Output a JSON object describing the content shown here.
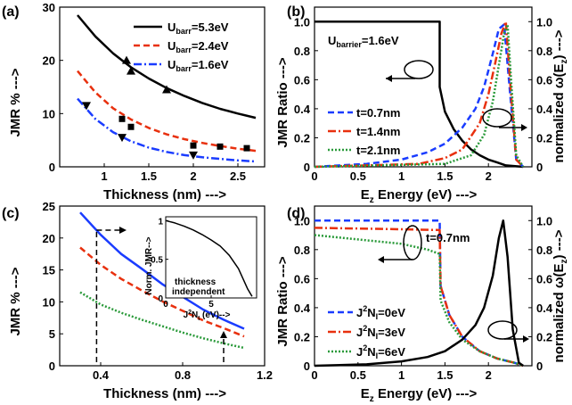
{
  "chart_data": [
    {
      "panel": "(a)",
      "type": "line",
      "xlabel": "Thickness (nm) --->",
      "ylabel": "JMR % --->",
      "xlim": [
        0.5,
        2.8
      ],
      "ylim": [
        0,
        30
      ],
      "xticks": [
        "1",
        "1.5",
        "2",
        "2.5"
      ],
      "yticks": [
        "0",
        "10",
        "20",
        "30"
      ],
      "legend_position": "top-right",
      "series": [
        {
          "name": "U_barr=5.3eV",
          "color": "#000000",
          "dash": "solid",
          "x": [
            0.7,
            0.9,
            1.1,
            1.3,
            1.5,
            1.7,
            1.9,
            2.1,
            2.3,
            2.5,
            2.7
          ],
          "y": [
            28.5,
            24.5,
            21.3,
            18.7,
            16.6,
            14.8,
            13.3,
            12.0,
            10.9,
            10.0,
            9.2
          ]
        },
        {
          "name": "U_barr=2.4eV",
          "color": "#e8300e",
          "dash": "dashed",
          "x": [
            0.7,
            0.9,
            1.1,
            1.3,
            1.5,
            1.7,
            1.9,
            2.1,
            2.3,
            2.5,
            2.7
          ],
          "y": [
            18.0,
            14.0,
            11.0,
            8.9,
            7.3,
            6.1,
            5.2,
            4.5,
            3.9,
            3.4,
            3.0
          ]
        },
        {
          "name": "U_barr=1.6eV",
          "color": "#1a3cff",
          "dash": "dashdot",
          "x": [
            0.7,
            0.9,
            1.1,
            1.3,
            1.5,
            1.7,
            1.9,
            2.1,
            2.3,
            2.5,
            2.7
          ],
          "y": [
            12.8,
            9.0,
            6.5,
            4.8,
            3.6,
            2.8,
            2.2,
            1.8,
            1.5,
            1.2,
            1.0
          ]
        }
      ],
      "markers": [
        {
          "shape": "triangle-up",
          "x": [
            1.25,
            1.3,
            1.7
          ],
          "y": [
            20,
            18,
            14.5
          ]
        },
        {
          "shape": "square",
          "x": [
            1.2,
            1.3,
            2.0,
            2.3,
            2.6
          ],
          "y": [
            9,
            7.5,
            4,
            3.8,
            3.5
          ]
        },
        {
          "shape": "triangle-down",
          "x": [
            0.8,
            1.2,
            2.0
          ],
          "y": [
            11.5,
            5.5,
            2.2
          ]
        }
      ]
    },
    {
      "panel": "(b)",
      "type": "line",
      "xlabel": "E_z Energy (eV) --->",
      "ylabel_left": "JMR Ratio --->",
      "ylabel_right": "normalized ω(E_z) --->",
      "xlim": [
        0,
        2.5
      ],
      "ylim": [
        0,
        1.1
      ],
      "xticks": [
        "0",
        "0.5",
        "1",
        "1.5",
        "2"
      ],
      "yticks": [
        "0",
        "0.2",
        "0.4",
        "0.6",
        "0.8",
        "1.0"
      ],
      "annotation": "U_barrier=1.6eV",
      "series": [
        {
          "name": "JMR",
          "color": "#000000",
          "dash": "solid",
          "x": [
            0,
            1.44,
            1.44,
            1.5,
            1.6,
            1.7,
            1.8,
            1.9,
            2.0,
            2.1,
            2.2,
            2.4
          ],
          "y": [
            1.0,
            1.0,
            0.55,
            0.38,
            0.26,
            0.18,
            0.12,
            0.08,
            0.05,
            0.03,
            0.01,
            0.0
          ]
        },
        {
          "name": "t=0.7nm",
          "color": "#1a3cff",
          "dash": "dashed",
          "x": [
            0,
            0.6,
            1.0,
            1.3,
            1.5,
            1.7,
            1.85,
            1.95,
            2.05,
            2.12,
            2.18,
            2.25,
            2.32,
            2.4
          ],
          "y": [
            0.0,
            0.02,
            0.05,
            0.1,
            0.16,
            0.27,
            0.4,
            0.55,
            0.78,
            0.95,
            0.98,
            0.5,
            0.05,
            0.0
          ]
        },
        {
          "name": "t=1.4nm",
          "color": "#e8300e",
          "dash": "dashdot",
          "x": [
            0,
            1.2,
            1.5,
            1.7,
            1.9,
            2.0,
            2.08,
            2.15,
            2.2,
            2.26,
            2.32,
            2.4
          ],
          "y": [
            0.0,
            0.02,
            0.06,
            0.12,
            0.3,
            0.5,
            0.72,
            0.92,
            1.0,
            0.5,
            0.05,
            0.0
          ]
        },
        {
          "name": "t=2.1nm",
          "color": "#2a9a3a",
          "dash": "dotted",
          "x": [
            0,
            1.5,
            1.8,
            1.95,
            2.05,
            2.12,
            2.18,
            2.22,
            2.26,
            2.32,
            2.4
          ],
          "y": [
            0.0,
            0.02,
            0.08,
            0.22,
            0.45,
            0.7,
            0.92,
            0.98,
            0.6,
            0.08,
            0.0
          ]
        }
      ]
    },
    {
      "panel": "(c)",
      "type": "line",
      "xlabel": "Thickness (nm) --->",
      "ylabel": "JMR % --->",
      "xlim": [
        0.2,
        1.2
      ],
      "ylim": [
        0,
        25
      ],
      "xticks": [
        "0.4",
        "0.8",
        "1.2"
      ],
      "yticks": [
        "0",
        "5",
        "10",
        "15",
        "20",
        "25"
      ],
      "series": [
        {
          "name": "blue",
          "color": "#1a3cff",
          "dash": "solid",
          "x": [
            0.3,
            0.4,
            0.5,
            0.6,
            0.7,
            0.8,
            0.9,
            1.0,
            1.1
          ],
          "y": [
            24.0,
            20.5,
            17.5,
            15.2,
            12.8,
            10.8,
            8.8,
            7.2,
            5.8
          ]
        },
        {
          "name": "red",
          "color": "#e8300e",
          "dash": "dashed",
          "x": [
            0.3,
            0.4,
            0.5,
            0.6,
            0.7,
            0.8,
            0.9,
            1.0,
            1.1
          ],
          "y": [
            18.5,
            15.8,
            13.6,
            11.8,
            10.1,
            8.6,
            7.1,
            5.9,
            4.6
          ]
        },
        {
          "name": "green",
          "color": "#2a9a3a",
          "dash": "dotted",
          "x": [
            0.3,
            0.4,
            0.5,
            0.6,
            0.7,
            0.8,
            0.9,
            1.0,
            1.1
          ],
          "y": [
            11.5,
            9.6,
            8.3,
            7.2,
            6.2,
            5.2,
            4.3,
            3.5,
            2.8
          ]
        }
      ],
      "inset": {
        "xlabel": "J²N_I (eV)-->",
        "ylabel": "Norm. JMR-->",
        "xlim": [
          0,
          10
        ],
        "ylim": [
          0,
          1.05
        ],
        "xticks": [
          "0",
          "5"
        ],
        "yticks": [
          "0",
          "0.5",
          "1"
        ],
        "annotation": [
          "thickness",
          "independent"
        ],
        "curve": {
          "x": [
            0,
            1,
            2,
            3,
            4,
            5,
            6,
            7,
            8,
            9,
            9.5
          ],
          "y": [
            1.0,
            0.97,
            0.93,
            0.88,
            0.82,
            0.75,
            0.67,
            0.55,
            0.38,
            0.12,
            0.02
          ]
        }
      }
    },
    {
      "panel": "(d)",
      "type": "line",
      "xlabel": "E_z Energy (eV) --->",
      "ylabel_left": "JMR Ratio --->",
      "ylabel_right": "normalized ω(E_z) --->",
      "xlim": [
        0,
        2.5
      ],
      "ylim": [
        0,
        1.1
      ],
      "xticks": [
        "0",
        "0.5",
        "1",
        "1.5",
        "2"
      ],
      "yticks": [
        "0",
        "0.2",
        "0.4",
        "0.6",
        "0.8",
        "1.0"
      ],
      "annotation": "t=0.7nm",
      "series": [
        {
          "name": "J²N_I=0eV",
          "color": "#1a3cff",
          "dash": "dashed",
          "x": [
            0,
            1.44,
            1.45,
            1.55,
            1.7,
            1.9,
            2.1,
            2.3,
            2.4
          ],
          "y": [
            1.0,
            1.0,
            0.55,
            0.35,
            0.2,
            0.1,
            0.05,
            0.02,
            0.0
          ]
        },
        {
          "name": "J²N_I=3eV",
          "color": "#e8300e",
          "dash": "dashdot",
          "x": [
            0,
            0.5,
            1.0,
            1.44,
            1.45,
            1.55,
            1.7,
            1.9,
            2.1,
            2.3,
            2.4
          ],
          "y": [
            0.95,
            0.945,
            0.94,
            0.935,
            0.55,
            0.35,
            0.2,
            0.1,
            0.05,
            0.02,
            0.0
          ]
        },
        {
          "name": "J²N_I=6eV",
          "color": "#2a9a3a",
          "dash": "dotted",
          "x": [
            0,
            0.5,
            1.0,
            1.3,
            1.44,
            1.45,
            1.55,
            1.7,
            1.9,
            2.1,
            2.3,
            2.4
          ],
          "y": [
            0.9,
            0.87,
            0.84,
            0.8,
            0.77,
            0.45,
            0.3,
            0.18,
            0.1,
            0.05,
            0.02,
            0.0
          ]
        },
        {
          "name": "ω(E_z)",
          "color": "#000000",
          "dash": "solid",
          "x": [
            0,
            0.6,
            1.0,
            1.3,
            1.5,
            1.7,
            1.85,
            1.95,
            2.05,
            2.12,
            2.17,
            2.22,
            2.28,
            2.35,
            2.4
          ],
          "y": [
            0.0,
            0.01,
            0.03,
            0.06,
            0.1,
            0.18,
            0.28,
            0.4,
            0.62,
            0.88,
            1.0,
            0.75,
            0.25,
            0.02,
            0.0
          ]
        }
      ]
    }
  ],
  "panel_labels": [
    "(a)",
    "(b)",
    "(c)",
    "(d)"
  ],
  "legend_a": [
    {
      "base": "U",
      "sub": "barr",
      "rest": "=5.3eV"
    },
    {
      "base": "U",
      "sub": "barr",
      "rest": "=2.4eV"
    },
    {
      "base": "U",
      "sub": "barr",
      "rest": "=1.6eV"
    }
  ],
  "legend_b": [
    "t=0.7nm",
    "t=1.4nm",
    "t=2.1nm"
  ],
  "legend_d": [
    {
      "a": "J",
      "sup": "2",
      "b": "N",
      "sub": "I",
      "rest": "=0eV"
    },
    {
      "a": "J",
      "sup": "2",
      "b": "N",
      "sub": "I",
      "rest": "=3eV"
    },
    {
      "a": "J",
      "sup": "2",
      "b": "N",
      "sub": "I",
      "rest": "=6eV"
    }
  ],
  "texts": {
    "b_annot_base": "U",
    "b_annot_sub": "barrier",
    "b_annot_rest": "=1.6eV",
    "d_annot": "t=0.7nm",
    "ez_base": "E",
    "ez_sub": "z",
    "ez_rest": " Energy (eV) --->",
    "thickness_label": "Thickness (nm) --->",
    "jmr_pct": "JMR % --->",
    "jmr_ratio": "JMR Ratio --->",
    "right_ylabel_a": "normalized ω(E",
    "right_ylabel_sub": "z",
    "right_ylabel_b": ") --->",
    "inset_ylabel": "Norm. JMR-->",
    "inset_xlabel_a": "J",
    "inset_xlabel_sup": "2",
    "inset_xlabel_b": "N",
    "inset_xlabel_sub": "I",
    "inset_xlabel_rest": " (eV)-->",
    "inset_annot_1": "thickness",
    "inset_annot_2": "independent"
  }
}
